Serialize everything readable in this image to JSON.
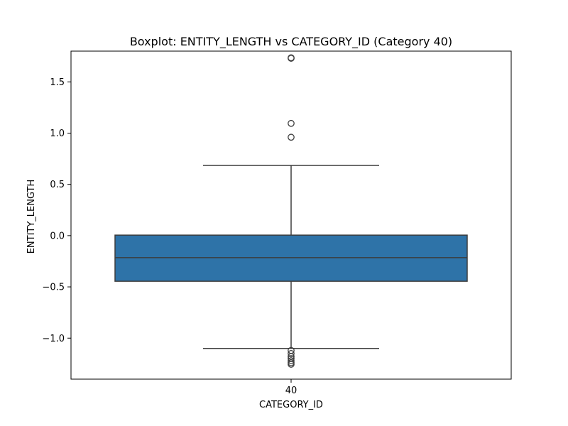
{
  "chart_data": {
    "type": "box",
    "title": "Boxplot: ENTITY_LENGTH vs CATEGORY_ID (Category 40)",
    "xlabel": "CATEGORY_ID",
    "ylabel": "ENTITY_LENGTH",
    "categories": [
      "40"
    ],
    "ylim": [
      -1.4,
      1.8
    ],
    "yticks": [
      -1.0,
      -0.5,
      0.0,
      0.5,
      1.0,
      1.5
    ],
    "ytick_labels": [
      "−1.0",
      "−0.5",
      "0.0",
      "0.5",
      "1.0",
      "1.5"
    ],
    "grid": false,
    "boxes": [
      {
        "category": "40",
        "whisker_low": -1.1,
        "q1": -0.445,
        "median": -0.215,
        "q3": 0.005,
        "whisker_high": 0.685,
        "outliers": [
          1.735,
          1.73,
          1.095,
          0.96,
          -1.12,
          -1.15,
          -1.18,
          -1.2,
          -1.22,
          -1.24,
          -1.255
        ]
      }
    ],
    "colors": {
      "box_fill": "#2e73a8",
      "line": "#3d3d3d",
      "outlier_edge": "#3d3d3d"
    }
  }
}
